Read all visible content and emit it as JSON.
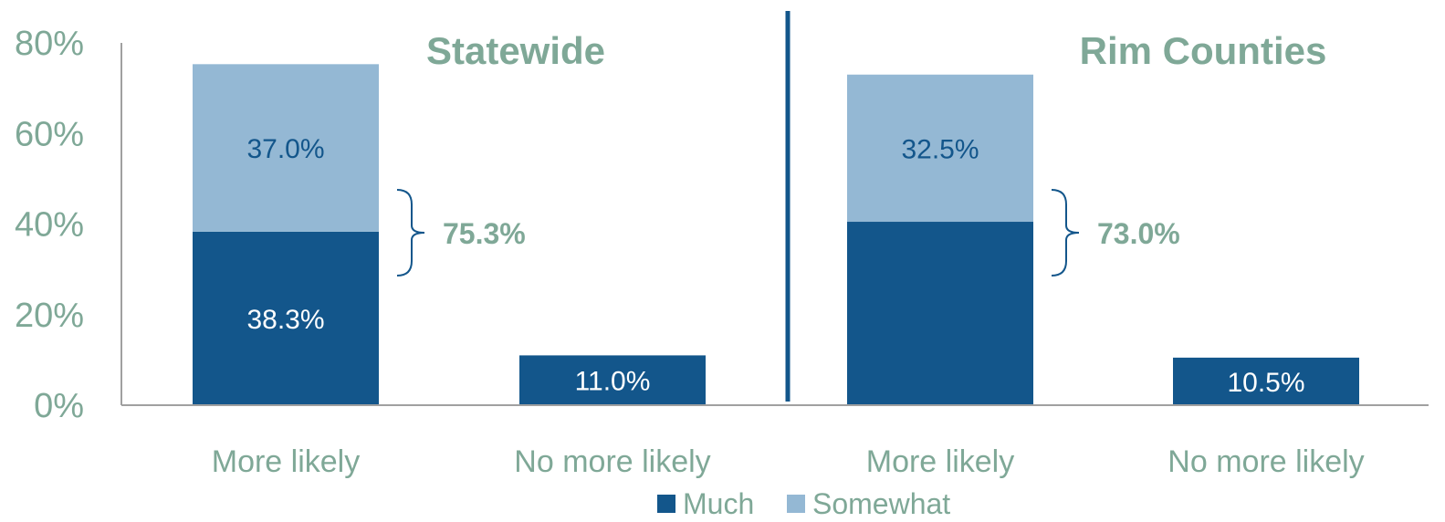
{
  "chart_data": {
    "type": "bar",
    "stacked": true,
    "ylim": [
      0,
      80
    ],
    "y_ticks": [
      0,
      20,
      40,
      60,
      80
    ],
    "y_tick_labels": [
      "0%",
      "20%",
      "40%",
      "60%",
      "80%"
    ],
    "categories": [
      "More likely",
      "No more likely",
      "More likely",
      "No more likely"
    ],
    "panels": [
      "Statewide",
      "Rim Counties"
    ],
    "series": [
      {
        "name": "Much",
        "color": "#13568b",
        "values": [
          38.3,
          11.0,
          40.5,
          10.5
        ]
      },
      {
        "name": "Somewhat",
        "color": "#94b8d4",
        "values": [
          37.0,
          0,
          32.5,
          0
        ]
      }
    ],
    "data_labels": {
      "Much": [
        "38.3%",
        "11.0%",
        "",
        "10.5%"
      ],
      "Somewhat": [
        "37.0%",
        "",
        "32.5%",
        ""
      ]
    },
    "totals": [
      {
        "category_index": 0,
        "label": "75.3%",
        "value": 75.3
      },
      {
        "category_index": 2,
        "label": "73.0%",
        "value": 73.0
      }
    ],
    "legend": {
      "position": "bottom",
      "items": [
        "Much",
        "Somewhat"
      ]
    },
    "grid": false,
    "colors": {
      "text": "#7fa897",
      "axis": "#a0a0a0",
      "divider": "#13568b",
      "label_dark": "#13568b",
      "label_light": "#ffffff"
    }
  }
}
